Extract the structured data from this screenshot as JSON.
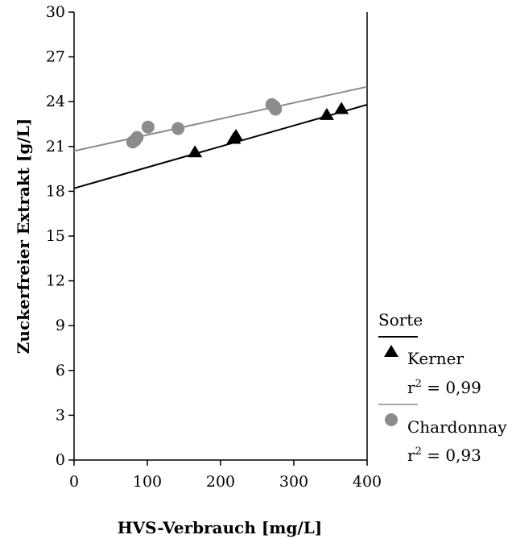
{
  "chart_data": {
    "type": "scatter",
    "xlabel": "HVS-Verbrauch [mg/L]",
    "ylabel": "Zuckerfreier Extrakt [g/L]",
    "xlim": [
      0,
      400
    ],
    "ylim": [
      0,
      30
    ],
    "x_ticks": [
      "0",
      "100",
      "200",
      "300",
      "400"
    ],
    "y_ticks": [
      "0",
      "3",
      "6",
      "9",
      "12",
      "15",
      "18",
      "21",
      "24",
      "27",
      "30"
    ],
    "grid": false,
    "legend": {
      "title": "Sorte",
      "placement": "right",
      "entries": [
        {
          "name": "Kerner",
          "r2_prefix": "r",
          "r2_sup": "2",
          "r2_value": " = 0,99"
        },
        {
          "name": "Chardonnay",
          "r2_prefix": "r",
          "r2_sup": "2",
          "r2_value": " = 0,93"
        }
      ]
    },
    "series": [
      {
        "name": "Kerner",
        "marker": "triangle",
        "color": "#000000",
        "points": [
          [
            165,
            20.6
          ],
          [
            218,
            21.5
          ],
          [
            221,
            21.7
          ],
          [
            345,
            23.1
          ],
          [
            365,
            23.5
          ]
        ],
        "fit": {
          "x": [
            0,
            400
          ],
          "y": [
            18.2,
            23.8
          ]
        }
      },
      {
        "name": "Chardonnay",
        "marker": "circle",
        "color": "#8c8c8c",
        "points": [
          [
            80,
            21.3
          ],
          [
            83,
            21.4
          ],
          [
            86,
            21.6
          ],
          [
            101,
            22.3
          ],
          [
            142,
            22.2
          ],
          [
            270,
            23.8
          ],
          [
            273,
            23.7
          ],
          [
            275,
            23.5
          ]
        ],
        "fit": {
          "x": [
            0,
            400
          ],
          "y": [
            20.7,
            25.0
          ]
        }
      }
    ]
  }
}
